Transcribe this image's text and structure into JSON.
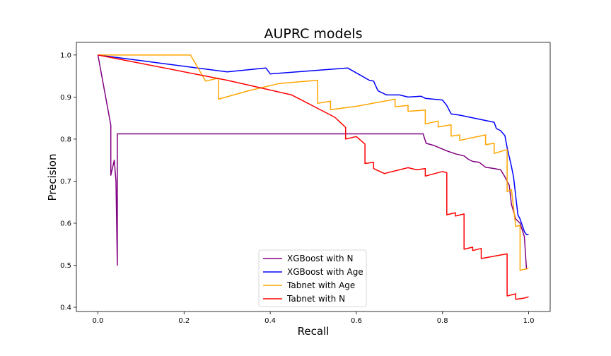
{
  "chart_data": {
    "type": "line",
    "title": "AUPRC models",
    "xlabel": "Recall",
    "ylabel": "Precision",
    "xlim": [
      -0.05,
      1.05
    ],
    "ylim": [
      0.39,
      1.03
    ],
    "xticks": [
      0.0,
      0.2,
      0.4,
      0.6,
      0.8,
      1.0
    ],
    "xtick_labels": [
      "0.0",
      "0.2",
      "0.4",
      "0.6",
      "0.8",
      "1.0"
    ],
    "yticks": [
      0.4,
      0.5,
      0.6,
      0.7,
      0.8,
      0.9,
      1.0
    ],
    "ytick_labels": [
      "0.4",
      "0.5",
      "0.6",
      "0.7",
      "0.8",
      "0.9",
      "1.0"
    ],
    "grid": false,
    "legend_position": "lower-center",
    "series": [
      {
        "name": "XGBoost with N",
        "color": "#800080",
        "points": [
          [
            0.0,
            1.0
          ],
          [
            0.03,
            0.833
          ],
          [
            0.03,
            0.714
          ],
          [
            0.038,
            0.75
          ],
          [
            0.042,
            0.7
          ],
          [
            0.045,
            0.5
          ],
          [
            0.045,
            0.8125
          ],
          [
            0.05,
            0.8125
          ],
          [
            0.755,
            0.8125
          ],
          [
            0.762,
            0.79
          ],
          [
            0.78,
            0.785
          ],
          [
            0.81,
            0.772
          ],
          [
            0.83,
            0.765
          ],
          [
            0.85,
            0.76
          ],
          [
            0.86,
            0.752
          ],
          [
            0.87,
            0.747
          ],
          [
            0.885,
            0.745
          ],
          [
            0.9,
            0.733
          ],
          [
            0.92,
            0.73
          ],
          [
            0.935,
            0.727
          ],
          [
            0.945,
            0.71
          ],
          [
            0.955,
            0.69
          ],
          [
            0.96,
            0.645
          ],
          [
            0.97,
            0.61
          ],
          [
            0.98,
            0.6
          ],
          [
            0.99,
            0.568
          ],
          [
            0.995,
            0.49
          ]
        ]
      },
      {
        "name": "XGBoost with Age",
        "color": "#0000ff",
        "points": [
          [
            0.0,
            1.0
          ],
          [
            0.3,
            0.96
          ],
          [
            0.39,
            0.969
          ],
          [
            0.4,
            0.955
          ],
          [
            0.58,
            0.969
          ],
          [
            0.63,
            0.94
          ],
          [
            0.64,
            0.938
          ],
          [
            0.65,
            0.915
          ],
          [
            0.66,
            0.91
          ],
          [
            0.67,
            0.905
          ],
          [
            0.7,
            0.905
          ],
          [
            0.72,
            0.9
          ],
          [
            0.75,
            0.902
          ],
          [
            0.76,
            0.897
          ],
          [
            0.8,
            0.893
          ],
          [
            0.81,
            0.88
          ],
          [
            0.82,
            0.86
          ],
          [
            0.84,
            0.857
          ],
          [
            0.92,
            0.84
          ],
          [
            0.925,
            0.825
          ],
          [
            0.935,
            0.82
          ],
          [
            0.945,
            0.808
          ],
          [
            0.95,
            0.78
          ],
          [
            0.96,
            0.735
          ],
          [
            0.965,
            0.71
          ],
          [
            0.975,
            0.62
          ],
          [
            0.98,
            0.61
          ],
          [
            0.99,
            0.58
          ],
          [
            0.995,
            0.573
          ],
          [
            1.0,
            0.573
          ]
        ]
      },
      {
        "name": "Tabnet with Age",
        "color": "#ffa500",
        "points": [
          [
            0.0,
            1.0
          ],
          [
            0.215,
            1.0
          ],
          [
            0.25,
            0.938
          ],
          [
            0.28,
            0.945
          ],
          [
            0.28,
            0.895
          ],
          [
            0.35,
            0.915
          ],
          [
            0.42,
            0.932
          ],
          [
            0.51,
            0.94
          ],
          [
            0.51,
            0.885
          ],
          [
            0.54,
            0.89
          ],
          [
            0.54,
            0.87
          ],
          [
            0.6,
            0.878
          ],
          [
            0.69,
            0.895
          ],
          [
            0.69,
            0.877
          ],
          [
            0.72,
            0.88
          ],
          [
            0.72,
            0.866
          ],
          [
            0.76,
            0.869
          ],
          [
            0.76,
            0.836
          ],
          [
            0.79,
            0.843
          ],
          [
            0.79,
            0.829
          ],
          [
            0.82,
            0.834
          ],
          [
            0.82,
            0.807
          ],
          [
            0.84,
            0.81
          ],
          [
            0.84,
            0.797
          ],
          [
            0.9,
            0.81
          ],
          [
            0.9,
            0.787
          ],
          [
            0.92,
            0.79
          ],
          [
            0.92,
            0.766
          ],
          [
            0.95,
            0.775
          ],
          [
            0.95,
            0.675
          ],
          [
            0.96,
            0.68
          ],
          [
            0.97,
            0.592
          ],
          [
            0.98,
            0.595
          ],
          [
            0.98,
            0.488
          ],
          [
            1.0,
            0.493
          ]
        ]
      },
      {
        "name": "Tabnet with N",
        "color": "#ff0000",
        "points": [
          [
            0.0,
            1.0
          ],
          [
            0.3,
            0.94
          ],
          [
            0.45,
            0.905
          ],
          [
            0.55,
            0.852
          ],
          [
            0.575,
            0.828
          ],
          [
            0.575,
            0.8
          ],
          [
            0.6,
            0.806
          ],
          [
            0.62,
            0.788
          ],
          [
            0.62,
            0.742
          ],
          [
            0.64,
            0.745
          ],
          [
            0.64,
            0.73
          ],
          [
            0.665,
            0.718
          ],
          [
            0.72,
            0.732
          ],
          [
            0.74,
            0.727
          ],
          [
            0.76,
            0.73
          ],
          [
            0.76,
            0.712
          ],
          [
            0.8,
            0.723
          ],
          [
            0.81,
            0.72
          ],
          [
            0.81,
            0.62
          ],
          [
            0.83,
            0.625
          ],
          [
            0.83,
            0.617
          ],
          [
            0.85,
            0.622
          ],
          [
            0.85,
            0.538
          ],
          [
            0.87,
            0.543
          ],
          [
            0.87,
            0.535
          ],
          [
            0.89,
            0.54
          ],
          [
            0.89,
            0.516
          ],
          [
            0.95,
            0.527
          ],
          [
            0.95,
            0.427
          ],
          [
            0.97,
            0.432
          ],
          [
            0.97,
            0.419
          ],
          [
            0.99,
            0.422
          ],
          [
            1.0,
            0.425
          ]
        ]
      }
    ]
  }
}
